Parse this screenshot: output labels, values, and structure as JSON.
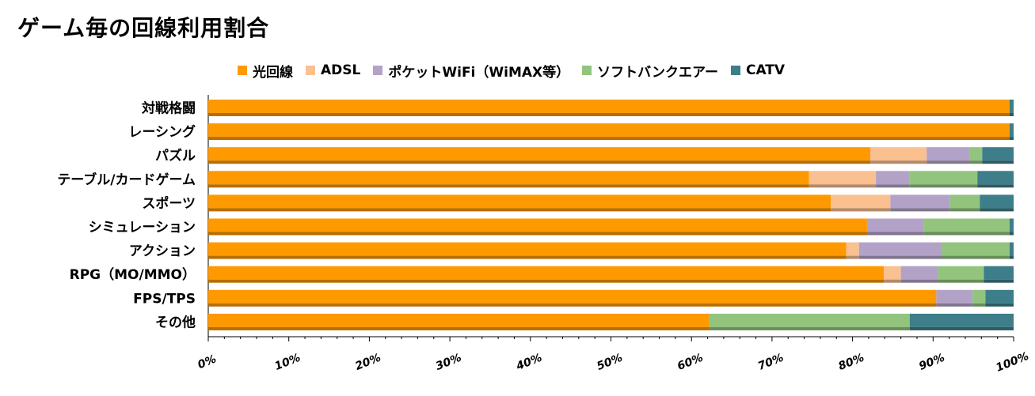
{
  "chart_data": {
    "type": "bar",
    "orientation": "horizontal",
    "stacked": "percent",
    "title": "ゲーム毎の回線利用割合",
    "categories": [
      "対戦格闘",
      "レーシング",
      "パズル",
      "テーブル/カードゲーム",
      "スポーツ",
      "シミュレーション",
      "アクション",
      "RPG（MO/MMO）",
      "FPS/TPS",
      "その他"
    ],
    "series": [
      {
        "name": "光回線",
        "color": "#FF9900",
        "values": [
          99.5,
          99.5,
          82.2,
          74.6,
          77.3,
          81.8,
          79.2,
          83.9,
          90.4,
          62.2
        ]
      },
      {
        "name": "ADSL",
        "color": "#FAC090",
        "values": [
          0,
          0,
          7.0,
          8.3,
          7.4,
          0,
          1.6,
          2.1,
          0,
          0
        ]
      },
      {
        "name": "ポケットWiFi（WiMAX等）",
        "color": "#B3A2C7",
        "values": [
          0,
          0,
          5.3,
          4.2,
          7.4,
          7.0,
          10.3,
          4.6,
          4.5,
          0
        ]
      },
      {
        "name": "ソフトバンクエアー",
        "color": "#92C47D",
        "values": [
          0,
          0,
          1.6,
          8.4,
          3.7,
          10.7,
          8.4,
          5.7,
          1.6,
          24.9
        ]
      },
      {
        "name": "CATV",
        "color": "#3E7D8A",
        "values": [
          0.5,
          0.5,
          3.9,
          4.5,
          4.2,
          0.5,
          0.5,
          3.7,
          3.5,
          12.9
        ]
      }
    ],
    "xlim": [
      0,
      100
    ],
    "xticks": [
      "0%",
      "10%",
      "20%",
      "30%",
      "40%",
      "50%",
      "60%",
      "70%",
      "80%",
      "90%",
      "100%"
    ],
    "legend_position": "top",
    "grid": false
  }
}
